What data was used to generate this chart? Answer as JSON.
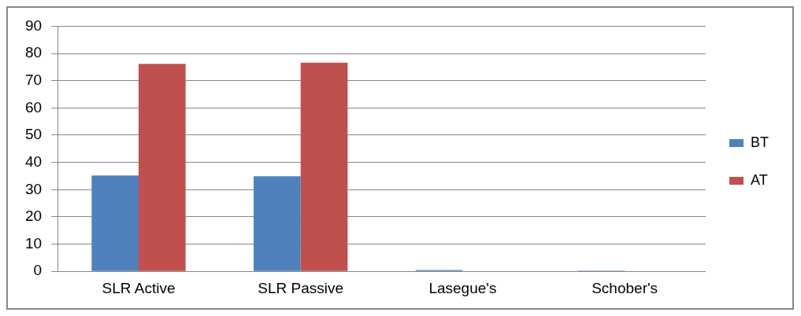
{
  "chart_data": {
    "type": "bar",
    "categories": [
      "SLR Active",
      "SLR Passive",
      "Lasegue's",
      "Schober's"
    ],
    "series": [
      {
        "name": "BT",
        "color": "#4f81bd",
        "values": [
          35.2,
          34.9,
          0.5,
          0.3
        ]
      },
      {
        "name": "AT",
        "color": "#c0504d",
        "values": [
          76.2,
          76.6,
          0,
          0
        ]
      }
    ],
    "ylim": [
      0,
      90
    ],
    "yticks": [
      0,
      10,
      20,
      30,
      40,
      50,
      60,
      70,
      80,
      90
    ],
    "grid": "y",
    "legend": "right"
  }
}
